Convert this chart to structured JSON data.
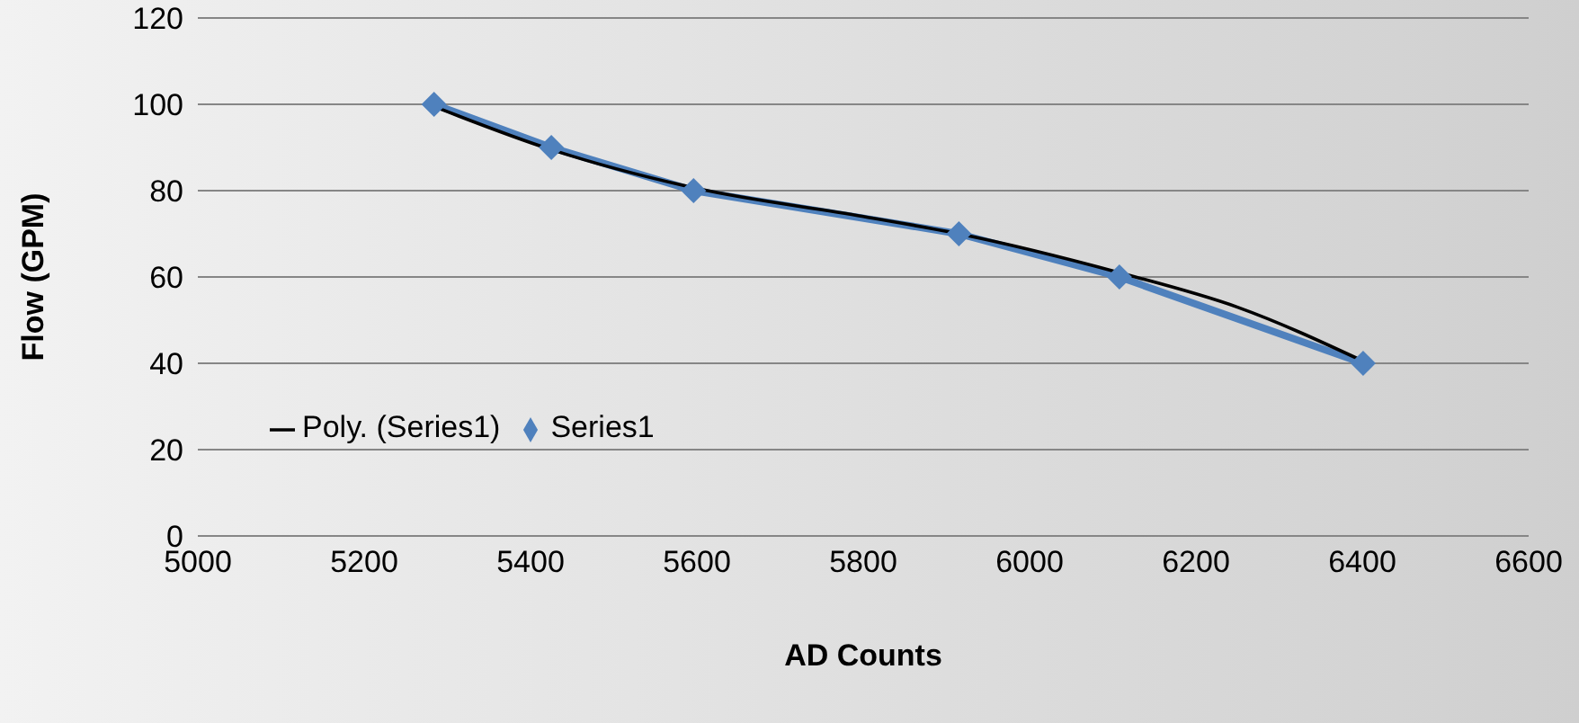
{
  "chart_data": {
    "type": "line",
    "xlabel": "AD Counts",
    "ylabel": "Flow (GPM)",
    "xlim": [
      5000,
      6600
    ],
    "xticks": [
      5000,
      5200,
      5400,
      5600,
      5800,
      6000,
      6200,
      6400,
      6600
    ],
    "ylim": [
      0,
      120
    ],
    "yticks": [
      0,
      20,
      40,
      60,
      80,
      100,
      120
    ],
    "grid": "y",
    "legend": "bottom left",
    "series": [
      {
        "name": "Series1",
        "color": "#4f81bd",
        "type": "line",
        "marker": "diamond",
        "x": [
          5284,
          5425,
          5596,
          5915,
          6108,
          6401
        ],
        "values": [
          100,
          90,
          80,
          70,
          60,
          40
        ]
      },
      {
        "name": "Poly. (Series1)",
        "color": "#000000",
        "type": "line",
        "marker": "none",
        "x": [
          5284,
          5425,
          5600,
          5800,
          5915,
          6108,
          6250,
          6401
        ],
        "values": [
          99.5,
          89.5,
          80.5,
          74,
          70,
          61,
          53,
          40.5
        ]
      }
    ]
  }
}
